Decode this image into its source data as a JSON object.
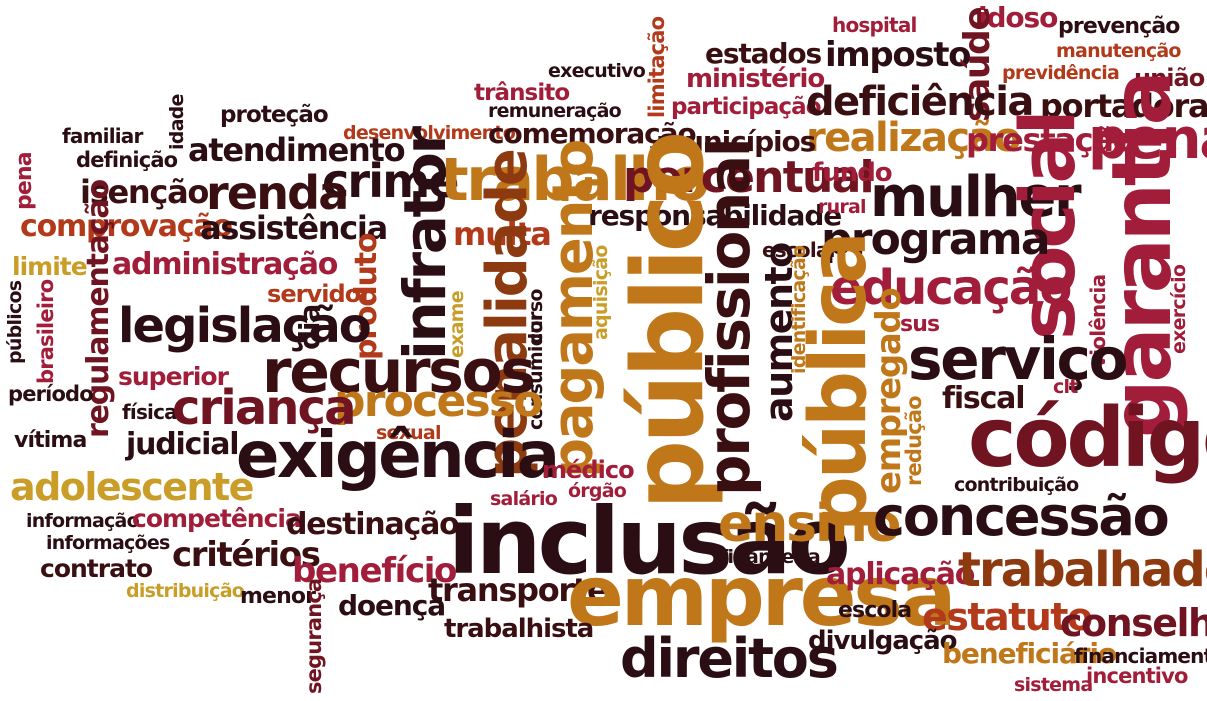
{
  "words": [
    "hospital",
    "idoso",
    "prevenção",
    "manutenção",
    "previdência",
    "união",
    "estados",
    "imposto",
    "saúde",
    "limitação",
    "executivo",
    "ministério",
    "trânsito",
    "remuneração",
    "participação",
    "deficiência",
    "portadora",
    "proteção",
    "idade",
    "familiar",
    "desenvolvimento",
    "comemoração",
    "realização",
    "prestação",
    "penal",
    "municípios",
    "atendimento",
    "definição",
    "pena",
    "crime",
    "trabalho",
    "percentual",
    "fundo",
    "renda",
    "isenção",
    "mulher",
    "social",
    "garantia",
    "responsabilidade",
    "comprovação",
    "assistência",
    "multa",
    "rural",
    "programa",
    "limite",
    "administração",
    "escolar",
    "educação",
    "regulamentação",
    "brasileiro",
    "servidor",
    "produto",
    "infrator",
    "penalidade",
    "pagamento",
    "público",
    "profissional",
    "pública",
    "aumento",
    "legislação",
    "dia",
    "curso",
    "consumidor",
    "aquisição",
    "exame",
    "identificação",
    "violência",
    "exercício",
    "sus",
    "serviço",
    "públicos",
    "recursos",
    "superior",
    "período",
    "processo",
    "empregado",
    "fiscal",
    "clt",
    "física",
    "criança",
    "redução",
    "código",
    "vítima",
    "judicial",
    "sexual",
    "exigência",
    "médico",
    "adolescente",
    "órgão",
    "salário",
    "contribuição",
    "informação",
    "competência",
    "destinação",
    "inclusão",
    "ensino",
    "concessão",
    "informações",
    "critérios",
    "contrato",
    "benefício",
    "financeira",
    "distribuição",
    "menor",
    "transporte",
    "empresa",
    "aplicação",
    "trabalhador",
    "segurança",
    "doença",
    "escola",
    "estatuto",
    "conselho",
    "trabalhista",
    "divulgação",
    "direitos",
    "beneficiário",
    "financiamento",
    "sistema",
    "incentivo"
  ]
}
